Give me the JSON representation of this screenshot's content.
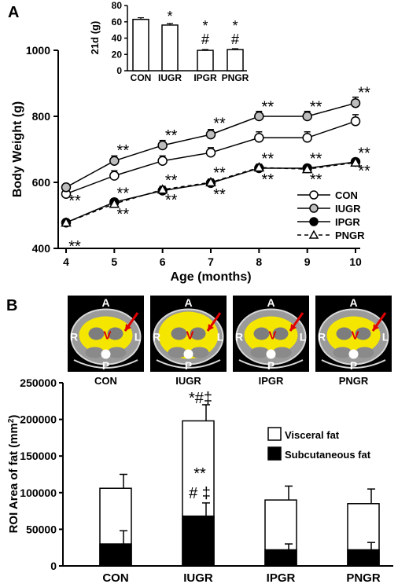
{
  "chart_data": [
    {
      "panel": "A",
      "type": "line",
      "xlabel": "Age (months)",
      "ylabel": "Body Weight (g)",
      "x": [
        4,
        5,
        6,
        7,
        8,
        9,
        10
      ],
      "xticks": [
        "4",
        "5",
        "6",
        "7",
        "8",
        "9",
        "10"
      ],
      "ylim": [
        400,
        1000
      ],
      "yticks": [
        "400",
        "600",
        "800",
        "1000"
      ],
      "legend_position": "bottom-right",
      "series": [
        {
          "name": "CON",
          "marker": "open-circle",
          "line": "solid",
          "values": [
            565,
            620,
            665,
            690,
            735,
            735,
            785
          ],
          "errors": [
            8,
            15,
            15,
            15,
            18,
            18,
            20
          ]
        },
        {
          "name": "IUGR",
          "marker": "gray-circle",
          "line": "solid",
          "values": [
            585,
            665,
            712,
            745,
            800,
            800,
            840
          ],
          "errors": [
            10,
            15,
            15,
            15,
            15,
            15,
            18
          ]
        },
        {
          "name": "IPGR",
          "marker": "filled-circle",
          "line": "solid",
          "values": [
            478,
            540,
            575,
            598,
            643,
            643,
            662
          ],
          "errors": [
            8,
            10,
            10,
            10,
            10,
            8,
            10
          ]
        },
        {
          "name": "PNGR",
          "marker": "open-triangle",
          "line": "dashed",
          "values": [
            478,
            535,
            578,
            600,
            645,
            640,
            660
          ],
          "errors": [
            8,
            10,
            10,
            10,
            10,
            8,
            10
          ]
        }
      ],
      "annotations": [
        {
          "x": 4,
          "y": 548,
          "text": "**"
        },
        {
          "x": 4,
          "y": 410,
          "text": "**"
        },
        {
          "x": 5,
          "y": 700,
          "text": "**"
        },
        {
          "x": 5,
          "y": 570,
          "text": "**"
        },
        {
          "x": 5,
          "y": 507,
          "text": "**"
        },
        {
          "x": 6,
          "y": 745,
          "text": "**"
        },
        {
          "x": 6,
          "y": 610,
          "text": "**"
        },
        {
          "x": 6,
          "y": 550,
          "text": "**"
        },
        {
          "x": 7,
          "y": 782,
          "text": "**"
        },
        {
          "x": 7,
          "y": 632,
          "text": "**"
        },
        {
          "x": 7,
          "y": 567,
          "text": "**"
        },
        {
          "x": 8,
          "y": 832,
          "text": "**"
        },
        {
          "x": 8,
          "y": 675,
          "text": "**"
        },
        {
          "x": 8,
          "y": 612,
          "text": "**"
        },
        {
          "x": 9,
          "y": 832,
          "text": "**"
        },
        {
          "x": 9,
          "y": 675,
          "text": "**"
        },
        {
          "x": 9,
          "y": 612,
          "text": "**"
        },
        {
          "x": 10,
          "y": 875,
          "text": "**"
        },
        {
          "x": 10,
          "y": 692,
          "text": "**"
        },
        {
          "x": 10,
          "y": 638,
          "text": "**"
        }
      ],
      "inset": {
        "type": "bar",
        "ylabel": "21d (g)",
        "categories": [
          "CON",
          "IUGR",
          "IPGR",
          "PNGR"
        ],
        "values": [
          63,
          56,
          25,
          26
        ],
        "errors": [
          2,
          2,
          1,
          1
        ],
        "ylim": [
          0,
          80
        ],
        "yticks": [
          "0",
          "20",
          "40",
          "60",
          "80"
        ],
        "significance": [
          "",
          "*",
          "*\n#",
          "*\n#"
        ]
      }
    },
    {
      "panel": "B",
      "type": "bar",
      "stacked": true,
      "ylabel": "ROI Area of fat (mm2)",
      "categories": [
        "CON",
        "IUGR",
        "IPGR",
        "PNGR"
      ],
      "ylim": [
        0,
        250000
      ],
      "yticks": [
        "0",
        "50000",
        "100000",
        "150000",
        "200000",
        "250000"
      ],
      "legend_position": "right",
      "series": [
        {
          "name": "Subcutaneous fat",
          "color": "#000000",
          "values": [
            30000,
            68000,
            22000,
            22000
          ],
          "errors": [
            18000,
            18000,
            8000,
            10000
          ]
        },
        {
          "name": "Visceral fat",
          "color": "#ffffff",
          "totals": [
            106000,
            198000,
            90000,
            85000
          ],
          "errors": [
            19000,
            22000,
            19000,
            20000
          ]
        }
      ],
      "significance_top": [
        "",
        "*#‡",
        "",
        ""
      ],
      "significance_inner": [
        "",
        "**\n# ‡",
        "",
        ""
      ],
      "images": [
        {
          "caption": "CON",
          "labels": [
            "A",
            "R",
            "V",
            "L",
            "P"
          ]
        },
        {
          "caption": "IUGR",
          "labels": [
            "A",
            "R",
            "V",
            "L",
            "P"
          ]
        },
        {
          "caption": "IPGR",
          "labels": [
            "A",
            "R",
            "V",
            "L",
            "P"
          ]
        },
        {
          "caption": "PNGR",
          "labels": [
            "A",
            "R",
            "V",
            "L",
            "P"
          ]
        }
      ]
    }
  ],
  "panel_labels": [
    "A",
    "B"
  ]
}
